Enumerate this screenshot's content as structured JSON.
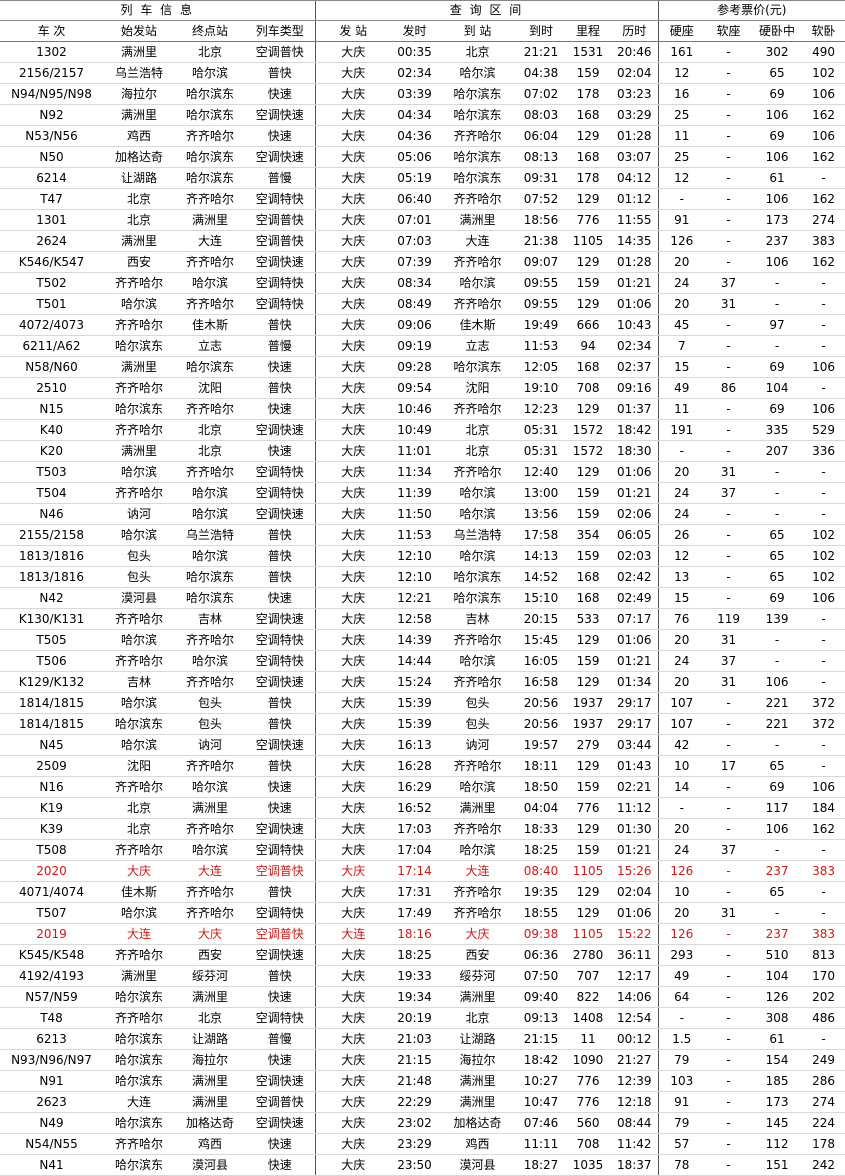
{
  "header": {
    "groups": [
      "列 车 信 息",
      "查 询 区 间",
      "参考票价(元)"
    ],
    "columns": [
      "车 次",
      "始发站",
      "终点站",
      "列车类型",
      "发 站",
      "发时",
      "到 站",
      "到时",
      "里程",
      "历时",
      "硬座",
      "软座",
      "硬卧中",
      "软卧"
    ]
  },
  "highlight_color": "#d01818",
  "rows": [
    [
      "1302",
      "满洲里",
      "北京",
      "空调普快",
      "大庆",
      "00:35",
      "北京",
      "21:21",
      "1531",
      "20:46",
      "161",
      "-",
      "302",
      "490"
    ],
    [
      "2156/2157",
      "乌兰浩特",
      "哈尔滨",
      "普快",
      "大庆",
      "02:34",
      "哈尔滨",
      "04:38",
      "159",
      "02:04",
      "12",
      "-",
      "65",
      "102"
    ],
    [
      "N94/N95/N98",
      "海拉尔",
      "哈尔滨东",
      "快速",
      "大庆",
      "03:39",
      "哈尔滨东",
      "07:02",
      "178",
      "03:23",
      "16",
      "-",
      "69",
      "106"
    ],
    [
      "N92",
      "满洲里",
      "哈尔滨东",
      "空调快速",
      "大庆",
      "04:34",
      "哈尔滨东",
      "08:03",
      "168",
      "03:29",
      "25",
      "-",
      "106",
      "162"
    ],
    [
      "N53/N56",
      "鸡西",
      "齐齐哈尔",
      "快速",
      "大庆",
      "04:36",
      "齐齐哈尔",
      "06:04",
      "129",
      "01:28",
      "11",
      "-",
      "69",
      "106"
    ],
    [
      "N50",
      "加格达奇",
      "哈尔滨东",
      "空调快速",
      "大庆",
      "05:06",
      "哈尔滨东",
      "08:13",
      "168",
      "03:07",
      "25",
      "-",
      "106",
      "162"
    ],
    [
      "6214",
      "让湖路",
      "哈尔滨东",
      "普慢",
      "大庆",
      "05:19",
      "哈尔滨东",
      "09:31",
      "178",
      "04:12",
      "12",
      "-",
      "61",
      "-"
    ],
    [
      "T47",
      "北京",
      "齐齐哈尔",
      "空调特快",
      "大庆",
      "06:40",
      "齐齐哈尔",
      "07:52",
      "129",
      "01:12",
      "-",
      "-",
      "106",
      "162"
    ],
    [
      "1301",
      "北京",
      "满洲里",
      "空调普快",
      "大庆",
      "07:01",
      "满洲里",
      "18:56",
      "776",
      "11:55",
      "91",
      "-",
      "173",
      "274"
    ],
    [
      "2624",
      "满洲里",
      "大连",
      "空调普快",
      "大庆",
      "07:03",
      "大连",
      "21:38",
      "1105",
      "14:35",
      "126",
      "-",
      "237",
      "383"
    ],
    [
      "K546/K547",
      "西安",
      "齐齐哈尔",
      "空调快速",
      "大庆",
      "07:39",
      "齐齐哈尔",
      "09:07",
      "129",
      "01:28",
      "20",
      "-",
      "106",
      "162"
    ],
    [
      "T502",
      "齐齐哈尔",
      "哈尔滨",
      "空调特快",
      "大庆",
      "08:34",
      "哈尔滨",
      "09:55",
      "159",
      "01:21",
      "24",
      "37",
      "-",
      "-"
    ],
    [
      "T501",
      "哈尔滨",
      "齐齐哈尔",
      "空调特快",
      "大庆",
      "08:49",
      "齐齐哈尔",
      "09:55",
      "129",
      "01:06",
      "20",
      "31",
      "-",
      "-"
    ],
    [
      "4072/4073",
      "齐齐哈尔",
      "佳木斯",
      "普快",
      "大庆",
      "09:06",
      "佳木斯",
      "19:49",
      "666",
      "10:43",
      "45",
      "-",
      "97",
      "-"
    ],
    [
      "6211/A62",
      "哈尔滨东",
      "立志",
      "普慢",
      "大庆",
      "09:19",
      "立志",
      "11:53",
      "94",
      "02:34",
      "7",
      "-",
      "-",
      "-"
    ],
    [
      "N58/N60",
      "满洲里",
      "哈尔滨东",
      "快速",
      "大庆",
      "09:28",
      "哈尔滨东",
      "12:05",
      "168",
      "02:37",
      "15",
      "-",
      "69",
      "106"
    ],
    [
      "2510",
      "齐齐哈尔",
      "沈阳",
      "普快",
      "大庆",
      "09:54",
      "沈阳",
      "19:10",
      "708",
      "09:16",
      "49",
      "86",
      "104",
      "-"
    ],
    [
      "N15",
      "哈尔滨东",
      "齐齐哈尔",
      "快速",
      "大庆",
      "10:46",
      "齐齐哈尔",
      "12:23",
      "129",
      "01:37",
      "11",
      "-",
      "69",
      "106"
    ],
    [
      "K40",
      "齐齐哈尔",
      "北京",
      "空调快速",
      "大庆",
      "10:49",
      "北京",
      "05:31",
      "1572",
      "18:42",
      "191",
      "-",
      "335",
      "529"
    ],
    [
      "K20",
      "满洲里",
      "北京",
      "快速",
      "大庆",
      "11:01",
      "北京",
      "05:31",
      "1572",
      "18:30",
      "-",
      "-",
      "207",
      "336"
    ],
    [
      "T503",
      "哈尔滨",
      "齐齐哈尔",
      "空调特快",
      "大庆",
      "11:34",
      "齐齐哈尔",
      "12:40",
      "129",
      "01:06",
      "20",
      "31",
      "-",
      "-"
    ],
    [
      "T504",
      "齐齐哈尔",
      "哈尔滨",
      "空调特快",
      "大庆",
      "11:39",
      "哈尔滨",
      "13:00",
      "159",
      "01:21",
      "24",
      "37",
      "-",
      "-"
    ],
    [
      "N46",
      "讷河",
      "哈尔滨",
      "空调快速",
      "大庆",
      "11:50",
      "哈尔滨",
      "13:56",
      "159",
      "02:06",
      "24",
      "-",
      "-",
      "-"
    ],
    [
      "2155/2158",
      "哈尔滨",
      "乌兰浩特",
      "普快",
      "大庆",
      "11:53",
      "乌兰浩特",
      "17:58",
      "354",
      "06:05",
      "26",
      "-",
      "65",
      "102"
    ],
    [
      "1813/1816",
      "包头",
      "哈尔滨",
      "普快",
      "大庆",
      "12:10",
      "哈尔滨",
      "14:13",
      "159",
      "02:03",
      "12",
      "-",
      "65",
      "102"
    ],
    [
      "1813/1816",
      "包头",
      "哈尔滨东",
      "普快",
      "大庆",
      "12:10",
      "哈尔滨东",
      "14:52",
      "168",
      "02:42",
      "13",
      "-",
      "65",
      "102"
    ],
    [
      "N42",
      "漠河县",
      "哈尔滨东",
      "快速",
      "大庆",
      "12:21",
      "哈尔滨东",
      "15:10",
      "168",
      "02:49",
      "15",
      "-",
      "69",
      "106"
    ],
    [
      "K130/K131",
      "齐齐哈尔",
      "吉林",
      "空调快速",
      "大庆",
      "12:58",
      "吉林",
      "20:15",
      "533",
      "07:17",
      "76",
      "119",
      "139",
      "-"
    ],
    [
      "T505",
      "哈尔滨",
      "齐齐哈尔",
      "空调特快",
      "大庆",
      "14:39",
      "齐齐哈尔",
      "15:45",
      "129",
      "01:06",
      "20",
      "31",
      "-",
      "-"
    ],
    [
      "T506",
      "齐齐哈尔",
      "哈尔滨",
      "空调特快",
      "大庆",
      "14:44",
      "哈尔滨",
      "16:05",
      "159",
      "01:21",
      "24",
      "37",
      "-",
      "-"
    ],
    [
      "K129/K132",
      "吉林",
      "齐齐哈尔",
      "空调快速",
      "大庆",
      "15:24",
      "齐齐哈尔",
      "16:58",
      "129",
      "01:34",
      "20",
      "31",
      "106",
      "-"
    ],
    [
      "1814/1815",
      "哈尔滨",
      "包头",
      "普快",
      "大庆",
      "15:39",
      "包头",
      "20:56",
      "1937",
      "29:17",
      "107",
      "-",
      "221",
      "372"
    ],
    [
      "1814/1815",
      "哈尔滨东",
      "包头",
      "普快",
      "大庆",
      "15:39",
      "包头",
      "20:56",
      "1937",
      "29:17",
      "107",
      "-",
      "221",
      "372"
    ],
    [
      "N45",
      "哈尔滨",
      "讷河",
      "空调快速",
      "大庆",
      "16:13",
      "讷河",
      "19:57",
      "279",
      "03:44",
      "42",
      "-",
      "-",
      "-"
    ],
    [
      "2509",
      "沈阳",
      "齐齐哈尔",
      "普快",
      "大庆",
      "16:28",
      "齐齐哈尔",
      "18:11",
      "129",
      "01:43",
      "10",
      "17",
      "65",
      "-"
    ],
    [
      "N16",
      "齐齐哈尔",
      "哈尔滨",
      "快速",
      "大庆",
      "16:29",
      "哈尔滨",
      "18:50",
      "159",
      "02:21",
      "14",
      "-",
      "69",
      "106"
    ],
    [
      "K19",
      "北京",
      "满洲里",
      "快速",
      "大庆",
      "16:52",
      "满洲里",
      "04:04",
      "776",
      "11:12",
      "-",
      "-",
      "117",
      "184"
    ],
    [
      "K39",
      "北京",
      "齐齐哈尔",
      "空调快速",
      "大庆",
      "17:03",
      "齐齐哈尔",
      "18:33",
      "129",
      "01:30",
      "20",
      "-",
      "106",
      "162"
    ],
    [
      "T508",
      "齐齐哈尔",
      "哈尔滨",
      "空调特快",
      "大庆",
      "17:04",
      "哈尔滨",
      "18:25",
      "159",
      "01:21",
      "24",
      "37",
      "-",
      "-"
    ],
    [
      "2020",
      "大庆",
      "大连",
      "空调普快",
      "大庆",
      "17:14",
      "大连",
      "08:40",
      "1105",
      "15:26",
      "126",
      "-",
      "237",
      "383"
    ],
    [
      "4071/4074",
      "佳木斯",
      "齐齐哈尔",
      "普快",
      "大庆",
      "17:31",
      "齐齐哈尔",
      "19:35",
      "129",
      "02:04",
      "10",
      "-",
      "65",
      "-"
    ],
    [
      "T507",
      "哈尔滨",
      "齐齐哈尔",
      "空调特快",
      "大庆",
      "17:49",
      "齐齐哈尔",
      "18:55",
      "129",
      "01:06",
      "20",
      "31",
      "-",
      "-"
    ],
    [
      "2019",
      "大连",
      "大庆",
      "空调普快",
      "大连",
      "18:16",
      "大庆",
      "09:38",
      "1105",
      "15:22",
      "126",
      "-",
      "237",
      "383"
    ],
    [
      "K545/K548",
      "齐齐哈尔",
      "西安",
      "空调快速",
      "大庆",
      "18:25",
      "西安",
      "06:36",
      "2780",
      "36:11",
      "293",
      "-",
      "510",
      "813"
    ],
    [
      "4192/4193",
      "满洲里",
      "绥芬河",
      "普快",
      "大庆",
      "19:33",
      "绥芬河",
      "07:50",
      "707",
      "12:17",
      "49",
      "-",
      "104",
      "170"
    ],
    [
      "N57/N59",
      "哈尔滨东",
      "满洲里",
      "快速",
      "大庆",
      "19:34",
      "满洲里",
      "09:40",
      "822",
      "14:06",
      "64",
      "-",
      "126",
      "202"
    ],
    [
      "T48",
      "齐齐哈尔",
      "北京",
      "空调特快",
      "大庆",
      "20:19",
      "北京",
      "09:13",
      "1408",
      "12:54",
      "-",
      "-",
      "308",
      "486"
    ],
    [
      "6213",
      "哈尔滨东",
      "让湖路",
      "普慢",
      "大庆",
      "21:03",
      "让湖路",
      "21:15",
      "11",
      "00:12",
      "1.5",
      "-",
      "61",
      "-"
    ],
    [
      "N93/N96/N97",
      "哈尔滨东",
      "海拉尔",
      "快速",
      "大庆",
      "21:15",
      "海拉尔",
      "18:42",
      "1090",
      "21:27",
      "79",
      "-",
      "154",
      "249"
    ],
    [
      "N91",
      "哈尔滨东",
      "满洲里",
      "空调快速",
      "大庆",
      "21:48",
      "满洲里",
      "10:27",
      "776",
      "12:39",
      "103",
      "-",
      "185",
      "286"
    ],
    [
      "2623",
      "大连",
      "满洲里",
      "空调普快",
      "大庆",
      "22:29",
      "满洲里",
      "10:47",
      "776",
      "12:18",
      "91",
      "-",
      "173",
      "274"
    ],
    [
      "N49",
      "哈尔滨东",
      "加格达奇",
      "空调快速",
      "大庆",
      "23:02",
      "加格达奇",
      "07:46",
      "560",
      "08:44",
      "79",
      "-",
      "145",
      "224"
    ],
    [
      "N54/N55",
      "齐齐哈尔",
      "鸡西",
      "快速",
      "大庆",
      "23:29",
      "鸡西",
      "11:11",
      "708",
      "11:42",
      "57",
      "-",
      "112",
      "178"
    ],
    [
      "N41",
      "哈尔滨东",
      "漠河县",
      "快速",
      "大庆",
      "23:50",
      "漠河县",
      "18:27",
      "1035",
      "18:37",
      "78",
      "-",
      "151",
      "242"
    ]
  ]
}
